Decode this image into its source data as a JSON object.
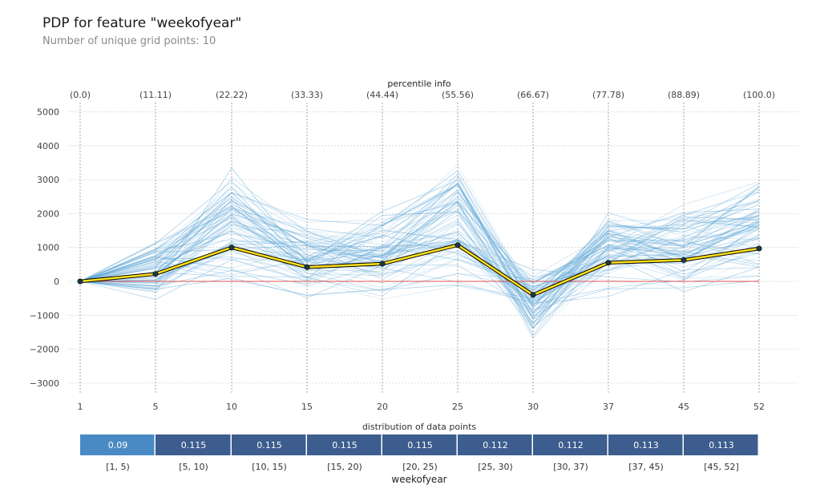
{
  "header": {
    "title": "PDP for feature \"weekofyear\"",
    "subtitle": "Number of unique grid points: 10"
  },
  "chart_data": {
    "type": "line",
    "top_axis_label": "percentile info",
    "percentile_labels": [
      "(0.0)",
      "(11.11)",
      "(22.22)",
      "(33.33)",
      "(44.44)",
      "(55.56)",
      "(66.67)",
      "(77.78)",
      "(88.89)",
      "(100.0)"
    ],
    "x": [
      1,
      5,
      10,
      15,
      20,
      25,
      30,
      37,
      45,
      52
    ],
    "x_tick_labels": [
      "1",
      "5",
      "10",
      "15",
      "20",
      "25",
      "30",
      "37",
      "45",
      "52"
    ],
    "y_ticks": [
      5000,
      4000,
      3000,
      2000,
      1000,
      0,
      -1000,
      -2000,
      -3000
    ],
    "y_tick_labels": [
      "5000",
      "4000",
      "3000",
      "2000",
      "1000",
      "0",
      "−1000",
      "−2000",
      "−3000"
    ],
    "ylim": [
      -3400,
      5200
    ],
    "grid": true,
    "series": [
      {
        "values": [
          0,
          220,
          1000,
          420,
          520,
          1070,
          -400,
          550,
          630,
          970
        ]
      }
    ],
    "reference_line": 0,
    "ice_lines_note_count": 80,
    "colors": {
      "pdp_line": "#ffe11a",
      "pdp_outline": "#000000",
      "pdp_marker": "#1a3a4a",
      "ice_line": "#5ea6d6",
      "zero_line": "#e35050",
      "dist_high": "#3c5d8d",
      "dist_low": "#4a8ac4"
    },
    "distribution": {
      "label": "distribution of data points",
      "xlabel": "weekofyear",
      "bins": [
        {
          "range": "[1, 5)",
          "value": "0.09"
        },
        {
          "range": "[5, 10)",
          "value": "0.115"
        },
        {
          "range": "[10, 15)",
          "value": "0.115"
        },
        {
          "range": "[15, 20)",
          "value": "0.115"
        },
        {
          "range": "[20, 25)",
          "value": "0.115"
        },
        {
          "range": "[25, 30)",
          "value": "0.112"
        },
        {
          "range": "[30, 37)",
          "value": "0.112"
        },
        {
          "range": "[37, 45)",
          "value": "0.113"
        },
        {
          "range": "[45, 52]",
          "value": "0.113"
        }
      ]
    }
  }
}
